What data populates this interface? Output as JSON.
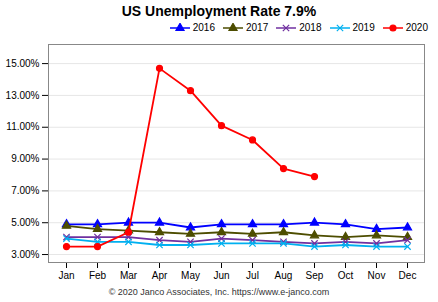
{
  "chart_data": {
    "type": "line",
    "title": "US Unemployment Rate 7.9%",
    "caption": "© 2020 Janco Associates, Inc. https://www.e-janco.com",
    "categories": [
      "Jan",
      "Feb",
      "Mar",
      "Apr",
      "May",
      "Jun",
      "Jul",
      "Aug",
      "Sep",
      "Oct",
      "Nov",
      "Dec"
    ],
    "series": [
      {
        "name": "2016",
        "color": "#0000FF",
        "marker": "triangle",
        "values": [
          4.9,
          4.9,
          5.0,
          5.0,
          4.7,
          4.9,
          4.9,
          4.9,
          5.0,
          4.9,
          4.6,
          4.7
        ]
      },
      {
        "name": "2017",
        "color": "#4d4d00",
        "marker": "triangle",
        "values": [
          4.8,
          4.6,
          4.5,
          4.4,
          4.3,
          4.4,
          4.3,
          4.4,
          4.2,
          4.1,
          4.2,
          4.1
        ]
      },
      {
        "name": "2018",
        "color": "#7030a0",
        "marker": "times",
        "values": [
          4.1,
          4.1,
          4.1,
          3.9,
          3.8,
          4.0,
          3.9,
          3.8,
          3.7,
          3.8,
          3.7,
          3.9
        ]
      },
      {
        "name": "2019",
        "color": "#00b0f0",
        "marker": "times",
        "values": [
          4.0,
          3.8,
          3.8,
          3.6,
          3.6,
          3.7,
          3.7,
          3.7,
          3.5,
          3.6,
          3.5,
          3.5
        ]
      },
      {
        "name": "2020",
        "color": "#FF0000",
        "marker": "circle",
        "values": [
          3.5,
          3.5,
          4.4,
          14.7,
          13.3,
          11.1,
          10.2,
          8.4,
          7.9,
          null,
          null,
          null
        ]
      }
    ],
    "ylim": [
      2.5,
      16.2
    ],
    "yticks": [
      {
        "value": 3.0,
        "label": "3.00%"
      },
      {
        "value": 5.0,
        "label": "5.00%"
      },
      {
        "value": 7.0,
        "label": "7.00%"
      },
      {
        "value": 9.0,
        "label": "9.00%"
      },
      {
        "value": 11.0,
        "label": "11.00%"
      },
      {
        "value": 13.0,
        "label": "13.00%"
      },
      {
        "value": 15.0,
        "label": "15.00%"
      }
    ],
    "grid": true,
    "legend": "upper right"
  }
}
